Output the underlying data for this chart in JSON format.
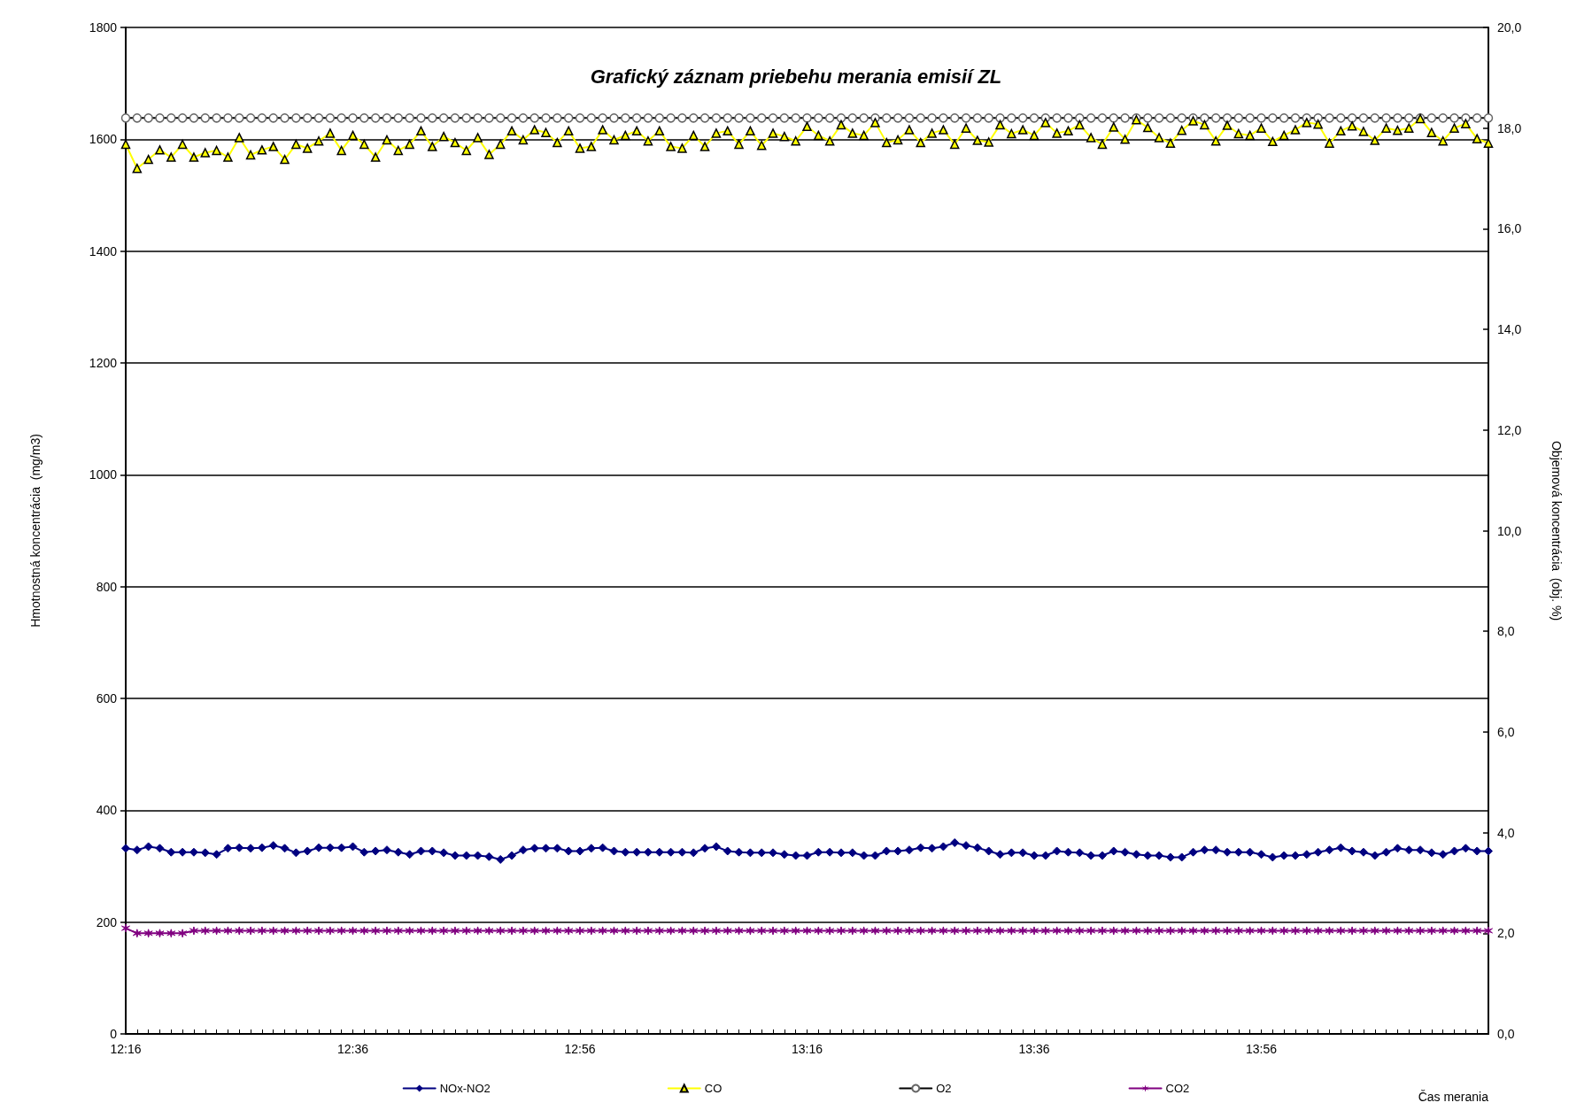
{
  "chart_data": {
    "type": "line",
    "title": "Grafický záznam priebehu merania emisií ZL",
    "xlabel": "Čas merania",
    "ylabel": "Hmotnostná koncentrácia  (mg/m3)",
    "y2label": "Objemová koncentrácia  (obj. %)",
    "categories": [
      "12:16",
      null,
      null,
      null,
      null,
      null,
      null,
      null,
      null,
      null,
      null,
      null,
      null,
      null,
      null,
      null,
      null,
      null,
      null,
      null,
      "12:36",
      null,
      null,
      null,
      null,
      null,
      null,
      null,
      null,
      null,
      null,
      null,
      null,
      null,
      null,
      null,
      null,
      null,
      null,
      null,
      "12:56",
      null,
      null,
      null,
      null,
      null,
      null,
      null,
      null,
      null,
      null,
      null,
      null,
      null,
      null,
      null,
      null,
      null,
      null,
      null,
      "13:16",
      null,
      null,
      null,
      null,
      null,
      null,
      null,
      null,
      null,
      null,
      null,
      null,
      null,
      null,
      null,
      null,
      null,
      null,
      null,
      "13:36",
      null,
      null,
      null,
      null,
      null,
      null,
      null,
      null,
      null,
      null,
      null,
      null,
      null,
      null,
      null,
      null,
      null,
      null,
      null,
      "13:56",
      null,
      null,
      null,
      null,
      null,
      null,
      null,
      null,
      null,
      null,
      null,
      null,
      null,
      null,
      null,
      null,
      null,
      null,
      null,
      null
    ],
    "ylim": [
      0,
      1800
    ],
    "yticks": [
      0,
      200,
      400,
      600,
      800,
      1000,
      1200,
      1400,
      1600,
      1800
    ],
    "y2lim": [
      0,
      20
    ],
    "y2ticks": [
      {
        "value": 0,
        "label": "0,0"
      },
      {
        "value": 2,
        "label": "2,0"
      },
      {
        "value": 4,
        "label": "4,0"
      },
      {
        "value": 6,
        "label": "6,0"
      },
      {
        "value": 8,
        "label": "8,0"
      },
      {
        "value": 10,
        "label": "10,0"
      },
      {
        "value": 12,
        "label": "12,0"
      },
      {
        "value": 14,
        "label": "14,0"
      },
      {
        "value": 16,
        "label": "16,0"
      },
      {
        "value": 18,
        "label": "18,0"
      },
      {
        "value": 20,
        "label": "20,0"
      }
    ],
    "grid": "y",
    "legend": "bottom",
    "line_style": "solid",
    "series": [
      {
        "name": "NOx-NO2",
        "color": "#000080",
        "marker": "diamond",
        "values": [
          332,
          329,
          335,
          332,
          325,
          325,
          325,
          324,
          321,
          332,
          333,
          332,
          333,
          337,
          332,
          324,
          327,
          333,
          333,
          333,
          335,
          325,
          327,
          329,
          325,
          321,
          327,
          327,
          324,
          319,
          319,
          319,
          317,
          312,
          319,
          329,
          332,
          332,
          332,
          327,
          327,
          332,
          333,
          327,
          325,
          325,
          325,
          325,
          325,
          325,
          324,
          332,
          335,
          327,
          325,
          324,
          324,
          324,
          321,
          319,
          319,
          325,
          325,
          324,
          324,
          319,
          319,
          327,
          327,
          329,
          333,
          332,
          335,
          342,
          337,
          333,
          327,
          321,
          324,
          324,
          319,
          319,
          327,
          325,
          324,
          319,
          319,
          327,
          325,
          321,
          319,
          319,
          316,
          316,
          325,
          329,
          329,
          325,
          325,
          325,
          321,
          316,
          319,
          319,
          321,
          325,
          329,
          333,
          327,
          325,
          319,
          325,
          332,
          329,
          329,
          324,
          321,
          327,
          332,
          327,
          327
        ]
      },
      {
        "name": "CO",
        "color": "#ffff00",
        "marker": "triangle",
        "values": [
          1591,
          1548,
          1564,
          1581,
          1568,
          1591,
          1568,
          1576,
          1580,
          1568,
          1603,
          1572,
          1581,
          1587,
          1564,
          1591,
          1584,
          1597,
          1611,
          1580,
          1607,
          1591,
          1568,
          1599,
          1580,
          1591,
          1615,
          1587,
          1605,
          1594,
          1580,
          1603,
          1573,
          1591,
          1615,
          1599,
          1617,
          1612,
          1594,
          1615,
          1584,
          1587,
          1617,
          1599,
          1607,
          1615,
          1597,
          1615,
          1587,
          1584,
          1607,
          1587,
          1611,
          1615,
          1591,
          1615,
          1589,
          1611,
          1605,
          1597,
          1623,
          1607,
          1597,
          1626,
          1611,
          1607,
          1630,
          1594,
          1599,
          1617,
          1594,
          1611,
          1617,
          1591,
          1620,
          1598,
          1595,
          1626,
          1610,
          1617,
          1607,
          1630,
          1611,
          1615,
          1626,
          1603,
          1591,
          1622,
          1600,
          1635,
          1621,
          1603,
          1593,
          1616,
          1633,
          1626,
          1597,
          1625,
          1610,
          1607,
          1620,
          1596,
          1607,
          1617,
          1630,
          1627,
          1593,
          1615,
          1624,
          1614,
          1598,
          1620,
          1616,
          1620,
          1637,
          1612,
          1597,
          1620,
          1628,
          1601,
          1593
        ]
      },
      {
        "name": "O2",
        "color": "#000000",
        "marker": "circle",
        "axis": "y2",
        "values": [
          18.2,
          18.2,
          18.2,
          18.2,
          18.2,
          18.2,
          18.2,
          18.2,
          18.2,
          18.2,
          18.2,
          18.2,
          18.2,
          18.2,
          18.2,
          18.2,
          18.2,
          18.2,
          18.2,
          18.2,
          18.2,
          18.2,
          18.2,
          18.2,
          18.2,
          18.2,
          18.2,
          18.2,
          18.2,
          18.2,
          18.2,
          18.2,
          18.2,
          18.2,
          18.2,
          18.2,
          18.2,
          18.2,
          18.2,
          18.2,
          18.2,
          18.2,
          18.2,
          18.2,
          18.2,
          18.2,
          18.2,
          18.2,
          18.2,
          18.2,
          18.2,
          18.2,
          18.2,
          18.2,
          18.2,
          18.2,
          18.2,
          18.2,
          18.2,
          18.2,
          18.2,
          18.2,
          18.2,
          18.2,
          18.2,
          18.2,
          18.2,
          18.2,
          18.2,
          18.2,
          18.2,
          18.2,
          18.2,
          18.2,
          18.2,
          18.2,
          18.2,
          18.2,
          18.2,
          18.2,
          18.2,
          18.2,
          18.2,
          18.2,
          18.2,
          18.2,
          18.2,
          18.2,
          18.2,
          18.2,
          18.2,
          18.2,
          18.2,
          18.2,
          18.2,
          18.2,
          18.2,
          18.2,
          18.2,
          18.2,
          18.2,
          18.2,
          18.2,
          18.2,
          18.2,
          18.2,
          18.2,
          18.2,
          18.2,
          18.2,
          18.2,
          18.2,
          18.2,
          18.2,
          18.2,
          18.2,
          18.2,
          18.2,
          18.2,
          18.2,
          18.2
        ]
      },
      {
        "name": "CO2",
        "color": "#800080",
        "marker": "cross",
        "axis": "y2",
        "values": [
          2.1,
          2.0,
          2.0,
          2.0,
          2.0,
          2.0,
          2.05,
          2.05,
          2.05,
          2.05,
          2.05,
          2.05,
          2.05,
          2.05,
          2.05,
          2.05,
          2.05,
          2.05,
          2.05,
          2.05,
          2.05,
          2.05,
          2.05,
          2.05,
          2.05,
          2.05,
          2.05,
          2.05,
          2.05,
          2.05,
          2.05,
          2.05,
          2.05,
          2.05,
          2.05,
          2.05,
          2.05,
          2.05,
          2.05,
          2.05,
          2.05,
          2.05,
          2.05,
          2.05,
          2.05,
          2.05,
          2.05,
          2.05,
          2.05,
          2.05,
          2.05,
          2.05,
          2.05,
          2.05,
          2.05,
          2.05,
          2.05,
          2.05,
          2.05,
          2.05,
          2.05,
          2.05,
          2.05,
          2.05,
          2.05,
          2.05,
          2.05,
          2.05,
          2.05,
          2.05,
          2.05,
          2.05,
          2.05,
          2.05,
          2.05,
          2.05,
          2.05,
          2.05,
          2.05,
          2.05,
          2.05,
          2.05,
          2.05,
          2.05,
          2.05,
          2.05,
          2.05,
          2.05,
          2.05,
          2.05,
          2.05,
          2.05,
          2.05,
          2.05,
          2.05,
          2.05,
          2.05,
          2.05,
          2.05,
          2.05,
          2.05,
          2.05,
          2.05,
          2.05,
          2.05,
          2.05,
          2.05,
          2.05,
          2.05,
          2.05,
          2.05,
          2.05,
          2.05,
          2.05,
          2.05,
          2.05,
          2.05,
          2.05,
          2.05,
          2.05,
          2.05
        ]
      }
    ]
  }
}
